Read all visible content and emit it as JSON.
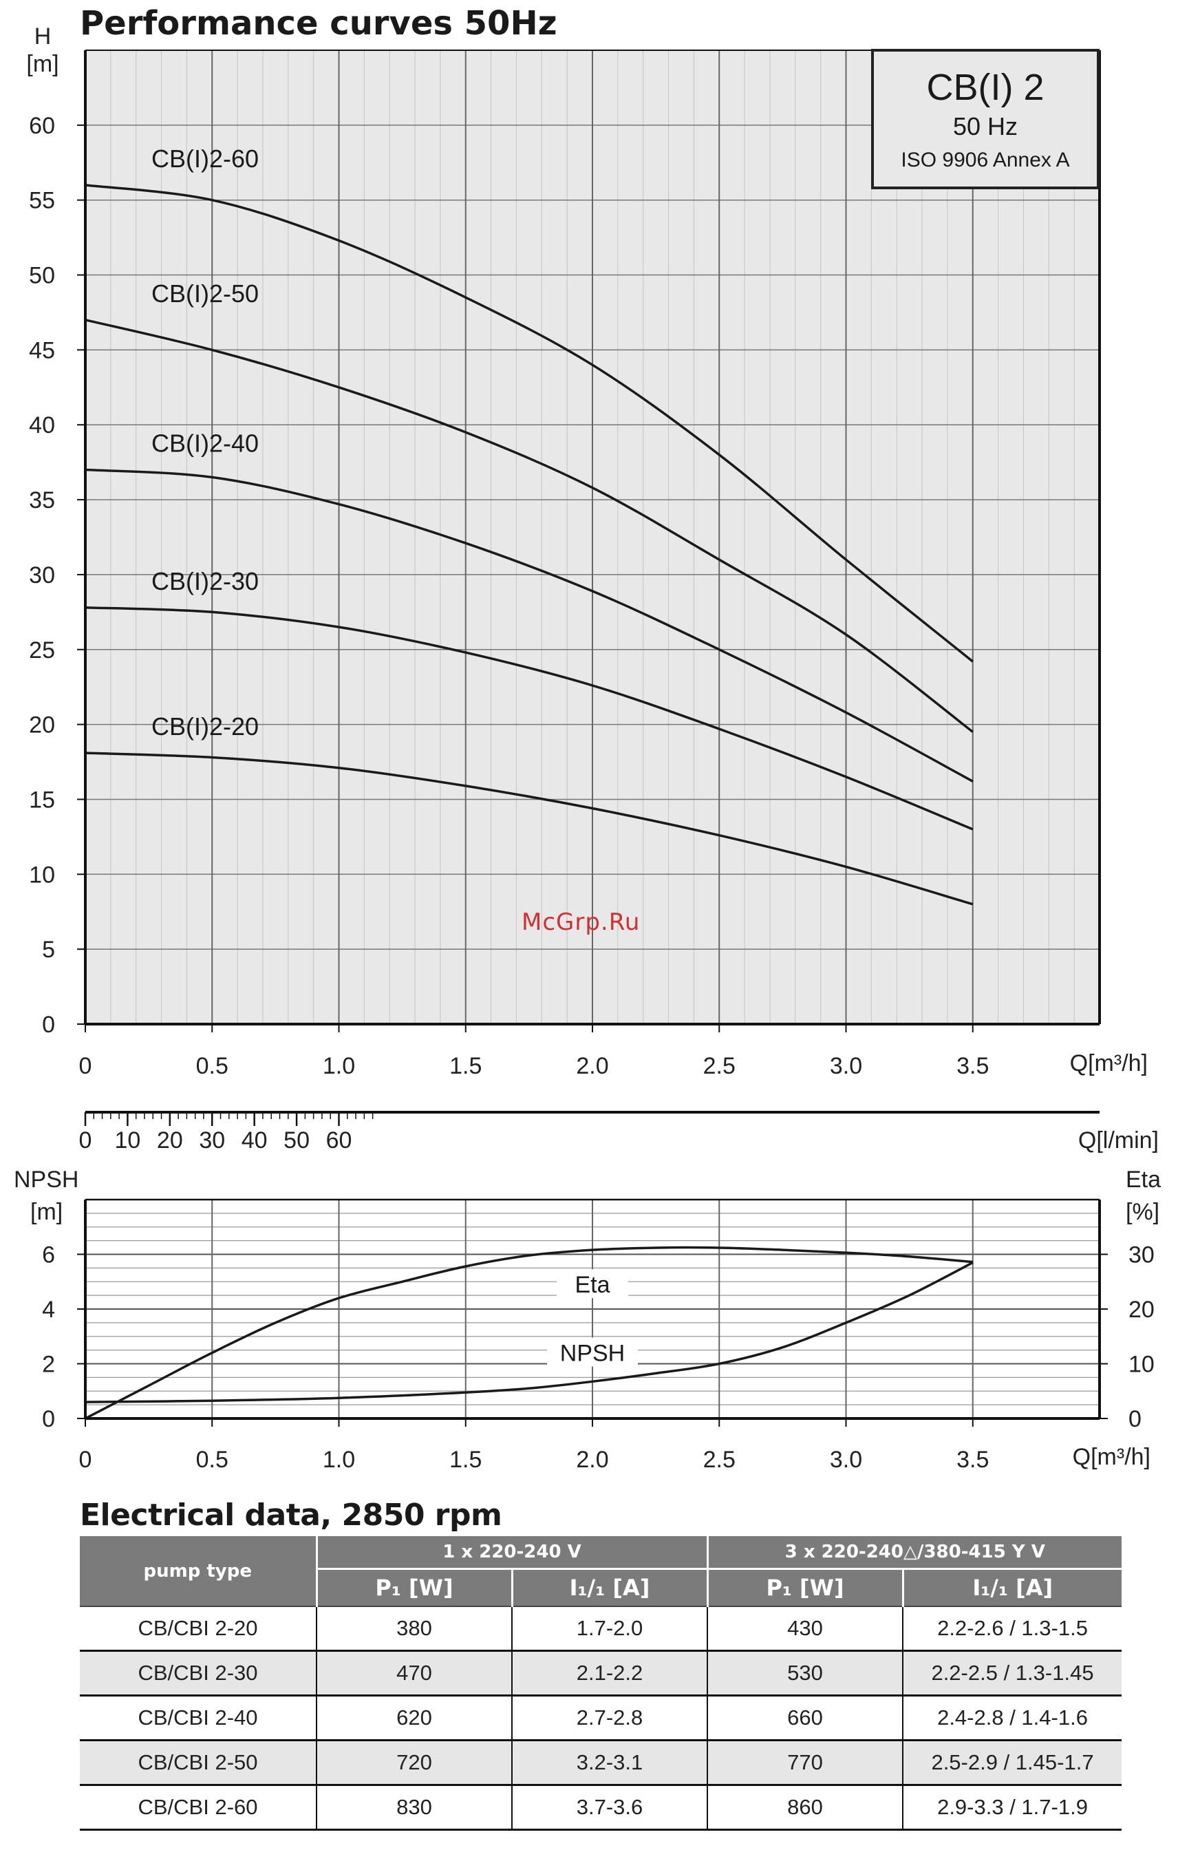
{
  "page_title": "Performance curves 50Hz",
  "info_box": {
    "model": "CB(I) 2",
    "frequency": "50 Hz",
    "standard": "ISO 9906 Annex A"
  },
  "watermark": "McGrp.Ru",
  "chart_data": [
    {
      "type": "line",
      "x_label": "Q[m³/h]",
      "y_label": "H\n[m]",
      "x_ticks": [
        "0",
        "0.5",
        "1.0",
        "1.5",
        "2.0",
        "2.5",
        "3.0",
        "3.5"
      ],
      "y_ticks": [
        "0",
        "5",
        "10",
        "15",
        "20",
        "25",
        "30",
        "35",
        "40",
        "45",
        "50",
        "55",
        "60"
      ],
      "xlim": [
        0,
        4.0
      ],
      "ylim": [
        0,
        65
      ],
      "grid": true,
      "secondary_x_axis": {
        "label": "Q[l/min]",
        "ticks": [
          "0",
          "10",
          "20",
          "30",
          "40",
          "50",
          "60"
        ],
        "values": [
          0,
          10,
          20,
          30,
          40,
          50,
          60
        ]
      },
      "series": [
        {
          "name": "CB(I)2-60",
          "x": [
            0,
            0.5,
            1.0,
            1.5,
            2.0,
            2.5,
            3.0,
            3.5
          ],
          "y": [
            56,
            55,
            52.3,
            48.5,
            44,
            38,
            31,
            24.2
          ]
        },
        {
          "name": "CB(I)2-50",
          "x": [
            0,
            0.5,
            1.0,
            1.5,
            2.0,
            2.5,
            3.0,
            3.5
          ],
          "y": [
            47,
            45,
            42.5,
            39.5,
            35.8,
            31,
            26,
            19.5
          ]
        },
        {
          "name": "CB(I)2-40",
          "x": [
            0,
            0.5,
            1.0,
            1.5,
            2.0,
            2.5,
            3.0,
            3.5
          ],
          "y": [
            37,
            36.5,
            34.7,
            32.1,
            28.9,
            25,
            20.8,
            16.2
          ]
        },
        {
          "name": "CB(I)2-30",
          "x": [
            0,
            0.5,
            1.0,
            1.5,
            2.0,
            2.5,
            3.0,
            3.5
          ],
          "y": [
            27.8,
            27.5,
            26.5,
            24.8,
            22.6,
            19.7,
            16.5,
            13
          ]
        },
        {
          "name": "CB(I)2-20",
          "x": [
            0,
            0.5,
            1.0,
            1.5,
            2.0,
            2.5,
            3.0,
            3.5
          ],
          "y": [
            18.1,
            17.8,
            17.1,
            15.9,
            14.4,
            12.6,
            10.5,
            8
          ]
        }
      ]
    },
    {
      "type": "line",
      "x_label": "Q[m³/h]",
      "y_label_left": "NPSH\n[m]",
      "y_label_right": "Eta\n[%]",
      "x_ticks": [
        "0",
        "0.5",
        "1.0",
        "1.5",
        "2.0",
        "2.5",
        "3.0",
        "3.5"
      ],
      "y_ticks_left": [
        "0",
        "2",
        "4",
        "6"
      ],
      "y_ticks_right": [
        "0",
        "10",
        "20",
        "30"
      ],
      "xlim": [
        0,
        4.0
      ],
      "ylim_left": [
        0,
        8
      ],
      "ylim_right": [
        0,
        40
      ],
      "grid": true,
      "series": [
        {
          "name": "Eta",
          "axis": "right",
          "x": [
            0,
            0.25,
            0.5,
            0.75,
            1.0,
            1.25,
            1.5,
            1.75,
            2.0,
            2.25,
            2.5,
            2.75,
            3.0,
            3.25,
            3.5
          ],
          "y": [
            0,
            6,
            12,
            17.5,
            22,
            25,
            27.8,
            29.8,
            30.8,
            31.2,
            31.2,
            30.8,
            30.3,
            29.6,
            28.6
          ]
        },
        {
          "name": "NPSH",
          "axis": "left",
          "x": [
            0,
            0.5,
            1.0,
            1.5,
            1.75,
            2.0,
            2.25,
            2.5,
            2.75,
            3.0,
            3.25,
            3.5
          ],
          "y": [
            0.6,
            0.65,
            0.75,
            0.95,
            1.1,
            1.35,
            1.65,
            2.0,
            2.6,
            3.5,
            4.5,
            5.7
          ]
        }
      ]
    }
  ],
  "electrical": {
    "title": "Electrical data, 2850 rpm",
    "header_pump_type": "pump type",
    "header_1phase": "1 x 220-240 V",
    "header_3phase": "3 x 220-240△/380-415 Y V",
    "header_p1": "P₁ [W]",
    "header_i": "I₁/₁ [A]",
    "rows": [
      {
        "type": "CB/CBI 2-20",
        "p1_1ph": "380",
        "i_1ph": "1.7-2.0",
        "p1_3ph": "430",
        "i_3ph": "2.2-2.6 / 1.3-1.5"
      },
      {
        "type": "CB/CBI 2-30",
        "p1_1ph": "470",
        "i_1ph": "2.1-2.2",
        "p1_3ph": "530",
        "i_3ph": "2.2-2.5 / 1.3-1.45"
      },
      {
        "type": "CB/CBI 2-40",
        "p1_1ph": "620",
        "i_1ph": "2.7-2.8",
        "p1_3ph": "660",
        "i_3ph": "2.4-2.8 / 1.4-1.6"
      },
      {
        "type": "CB/CBI 2-50",
        "p1_1ph": "720",
        "i_1ph": "3.2-3.1",
        "p1_3ph": "770",
        "i_3ph": "2.5-2.9 / 1.45-1.7"
      },
      {
        "type": "CB/CBI 2-60",
        "p1_1ph": "830",
        "i_1ph": "3.7-3.6",
        "p1_3ph": "860",
        "i_3ph": "2.9-3.3 / 1.7-1.9"
      }
    ]
  }
}
